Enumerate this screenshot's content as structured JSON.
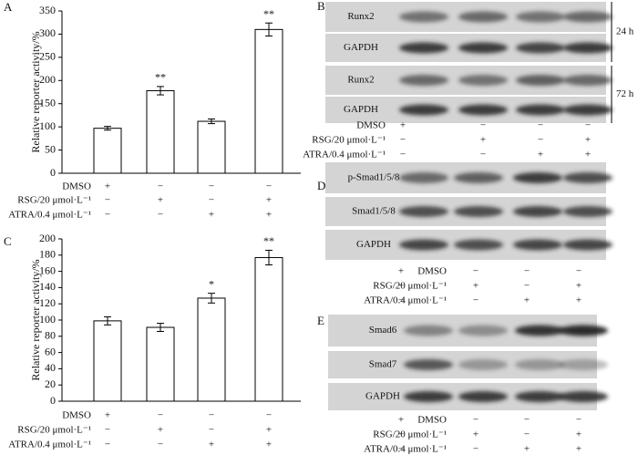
{
  "chart_data": [
    {
      "type": "bar",
      "panel": "A",
      "ylabel": "Relative reporter activity/%",
      "values": [
        97,
        178,
        112,
        310
      ],
      "errors": [
        4,
        9,
        5,
        14
      ],
      "significance": [
        null,
        "**",
        null,
        "**"
      ],
      "color": "#ffffff",
      "ylim": [
        0,
        350
      ],
      "yticks": [
        0,
        50,
        100,
        150,
        200,
        250,
        300,
        350
      ],
      "treatments": [
        {
          "label": "DMSO",
          "signs": [
            "+",
            "−",
            "−",
            "−"
          ]
        },
        {
          "label": "RSG/20 μmol·L⁻¹",
          "signs": [
            "−",
            "+",
            "−",
            "+"
          ]
        },
        {
          "label": "ATRA/0.4 μmol·L⁻¹",
          "signs": [
            "−",
            "−",
            "+",
            "+"
          ]
        }
      ]
    },
    {
      "type": "bar",
      "panel": "C",
      "ylabel": "Relative reporter activity/%",
      "values": [
        99,
        91,
        127,
        177
      ],
      "errors": [
        5,
        5,
        6,
        9
      ],
      "significance": [
        null,
        null,
        "*",
        "**"
      ],
      "color": "#ffffff",
      "ylim": [
        0,
        200
      ],
      "yticks": [
        0,
        20,
        40,
        60,
        80,
        100,
        120,
        140,
        160,
        180,
        200
      ],
      "treatments": [
        {
          "label": "DMSO",
          "signs": [
            "+",
            "−",
            "−",
            "−"
          ]
        },
        {
          "label": "RSG/20 μmol·L⁻¹",
          "signs": [
            "−",
            "+",
            "−",
            "+"
          ]
        },
        {
          "label": "ATRA/0.4 μmol·L⁻¹",
          "signs": [
            "−",
            "−",
            "+",
            "+"
          ]
        }
      ]
    }
  ],
  "blots": [
    {
      "panel": "B",
      "rows": [
        "Runx2",
        "GAPDH",
        "Runx2",
        "GAPDH"
      ],
      "times": [
        "24 h",
        "72 h"
      ],
      "treatments": [
        {
          "label": "DMSO",
          "signs": [
            "+",
            "−",
            "−",
            "−"
          ]
        },
        {
          "label": "RSG/20 μmol·L⁻¹",
          "signs": [
            "−",
            "+",
            "−",
            "+"
          ]
        },
        {
          "label": "ATRA/0.4 μmol·L⁻¹",
          "signs": [
            "−",
            "−",
            "+",
            "+"
          ]
        }
      ]
    },
    {
      "panel": "D",
      "rows": [
        "p-Smad1/5/8",
        "Smad1/5/8",
        "GAPDH"
      ],
      "treatments": [
        {
          "label": "DMSO",
          "signs": [
            "+",
            "−",
            "−",
            "−"
          ]
        },
        {
          "label": "RSG/20 μmol·L⁻¹",
          "signs": [
            "−",
            "+",
            "−",
            "+"
          ]
        },
        {
          "label": "ATRA/0.4 μmol·L⁻¹",
          "signs": [
            "−",
            "−",
            "+",
            "+"
          ]
        }
      ]
    },
    {
      "panel": "E",
      "rows": [
        "Smad6",
        "Smad7",
        "GAPDH"
      ],
      "treatments": [
        {
          "label": "DMSO",
          "signs": [
            "+",
            "−",
            "−",
            "−"
          ]
        },
        {
          "label": "RSG/20 μmol·L⁻¹",
          "signs": [
            "−",
            "+",
            "−",
            "+"
          ]
        },
        {
          "label": "ATRA/0.4 μmol·L⁻¹",
          "signs": [
            "−",
            "−",
            "+",
            "+"
          ]
        }
      ]
    }
  ]
}
